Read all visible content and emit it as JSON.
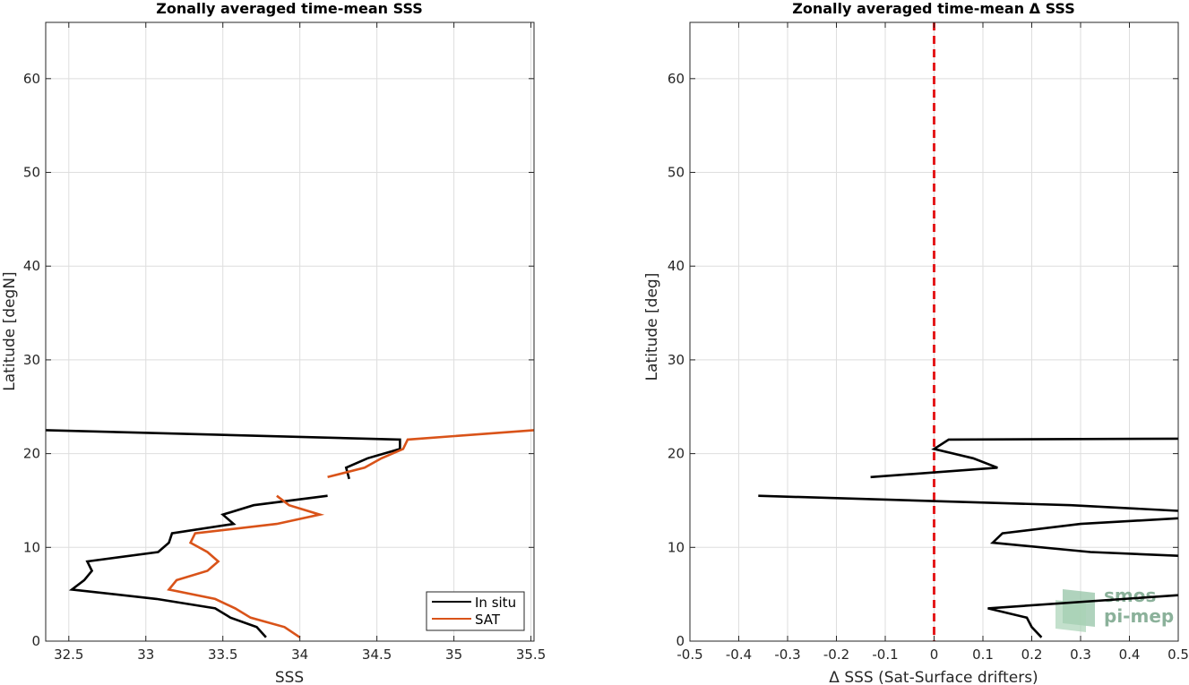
{
  "chart_data": [
    {
      "type": "line",
      "title": "Zonally averaged time-mean SSS",
      "xlabel": "SSS",
      "ylabel": "Latitude [degN]",
      "xlim": [
        32.35,
        35.52
      ],
      "ylim": [
        0,
        66
      ],
      "xticks": [
        32.5,
        33,
        33.5,
        34,
        34.5,
        35,
        35.5
      ],
      "xtick_labels": [
        "32.5",
        "33",
        "33.5",
        "34",
        "34.5",
        "35",
        "35.5"
      ],
      "yticks": [
        0,
        10,
        20,
        30,
        40,
        50,
        60
      ],
      "ytick_labels": [
        "0",
        "10",
        "20",
        "30",
        "40",
        "50",
        "60"
      ],
      "grid": true,
      "legend_position": "bottom-right",
      "series": [
        {
          "name": "In situ",
          "color": "#000000",
          "segments": [
            [
              [
                33.78,
                0.4
              ],
              [
                33.72,
                1.5
              ],
              [
                33.55,
                2.5
              ],
              [
                33.45,
                3.5
              ],
              [
                33.07,
                4.5
              ],
              [
                32.52,
                5.5
              ],
              [
                32.6,
                6.5
              ],
              [
                32.65,
                7.5
              ],
              [
                32.62,
                8.5
              ],
              [
                33.08,
                9.5
              ],
              [
                33.15,
                10.5
              ],
              [
                33.17,
                11.5
              ],
              [
                33.57,
                12.5
              ],
              [
                33.5,
                13.5
              ],
              [
                33.7,
                14.5
              ],
              [
                34.18,
                15.5
              ]
            ],
            [
              [
                34.32,
                17.3
              ],
              [
                34.3,
                18.5
              ],
              [
                34.44,
                19.5
              ],
              [
                34.65,
                20.5
              ],
              [
                34.65,
                21.5
              ],
              [
                32.35,
                22.5
              ]
            ]
          ]
        },
        {
          "name": "SAT",
          "color": "#d95319",
          "segments": [
            [
              [
                34.0,
                0.4
              ],
              [
                33.9,
                1.5
              ],
              [
                33.68,
                2.5
              ],
              [
                33.58,
                3.5
              ],
              [
                33.45,
                4.5
              ],
              [
                33.15,
                5.5
              ],
              [
                33.2,
                6.5
              ],
              [
                33.4,
                7.5
              ],
              [
                33.47,
                8.5
              ],
              [
                33.4,
                9.5
              ],
              [
                33.29,
                10.5
              ],
              [
                33.32,
                11.5
              ],
              [
                33.85,
                12.5
              ],
              [
                34.13,
                13.5
              ],
              [
                33.93,
                14.5
              ],
              [
                33.85,
                15.5
              ]
            ],
            [
              [
                34.18,
                17.5
              ],
              [
                34.42,
                18.5
              ],
              [
                34.53,
                19.5
              ],
              [
                34.67,
                20.5
              ],
              [
                34.7,
                21.5
              ],
              [
                35.52,
                22.5
              ]
            ]
          ]
        }
      ]
    },
    {
      "type": "line",
      "title": "Zonally averaged time-mean Δ SSS",
      "xlabel": "Δ SSS (Sat-Surface drifters)",
      "ylabel": "Latitude [deg]",
      "xlim": [
        -0.5,
        0.5
      ],
      "ylim": [
        0,
        66
      ],
      "xticks": [
        -0.5,
        -0.4,
        -0.3,
        -0.2,
        -0.1,
        0,
        0.1,
        0.2,
        0.3,
        0.4,
        0.5
      ],
      "xtick_labels": [
        "-0.5",
        "-0.4",
        "-0.3",
        "-0.2",
        "-0.1",
        "0",
        "0.1",
        "0.2",
        "0.3",
        "0.4",
        "0.5"
      ],
      "yticks": [
        0,
        10,
        20,
        30,
        40,
        50,
        60
      ],
      "ytick_labels": [
        "0",
        "10",
        "20",
        "30",
        "40",
        "50",
        "60"
      ],
      "grid": true,
      "reference_line": {
        "x": 0,
        "color": "#e41a1c",
        "style": "dashed"
      },
      "series": [
        {
          "color": "#000000",
          "segments": [
            [
              [
                0.22,
                0.4
              ],
              [
                0.2,
                1.5
              ],
              [
                0.19,
                2.5
              ],
              [
                0.11,
                3.5
              ],
              [
                0.5,
                4.9
              ]
            ],
            [
              [
                0.5,
                9.1
              ],
              [
                0.32,
                9.5
              ],
              [
                0.12,
                10.5
              ],
              [
                0.14,
                11.5
              ],
              [
                0.3,
                12.5
              ],
              [
                0.5,
                13.1
              ]
            ],
            [
              [
                0.5,
                13.9
              ],
              [
                0.28,
                14.5
              ],
              [
                -0.36,
                15.5
              ]
            ],
            [
              [
                -0.13,
                17.5
              ],
              [
                0.13,
                18.5
              ],
              [
                0.08,
                19.5
              ],
              [
                0.0,
                20.5
              ],
              [
                0.03,
                21.5
              ],
              [
                0.5,
                21.6
              ]
            ]
          ]
        }
      ]
    }
  ],
  "watermark": {
    "line1": "smos",
    "line2": "pi-mep",
    "color": "#6f9e82"
  }
}
